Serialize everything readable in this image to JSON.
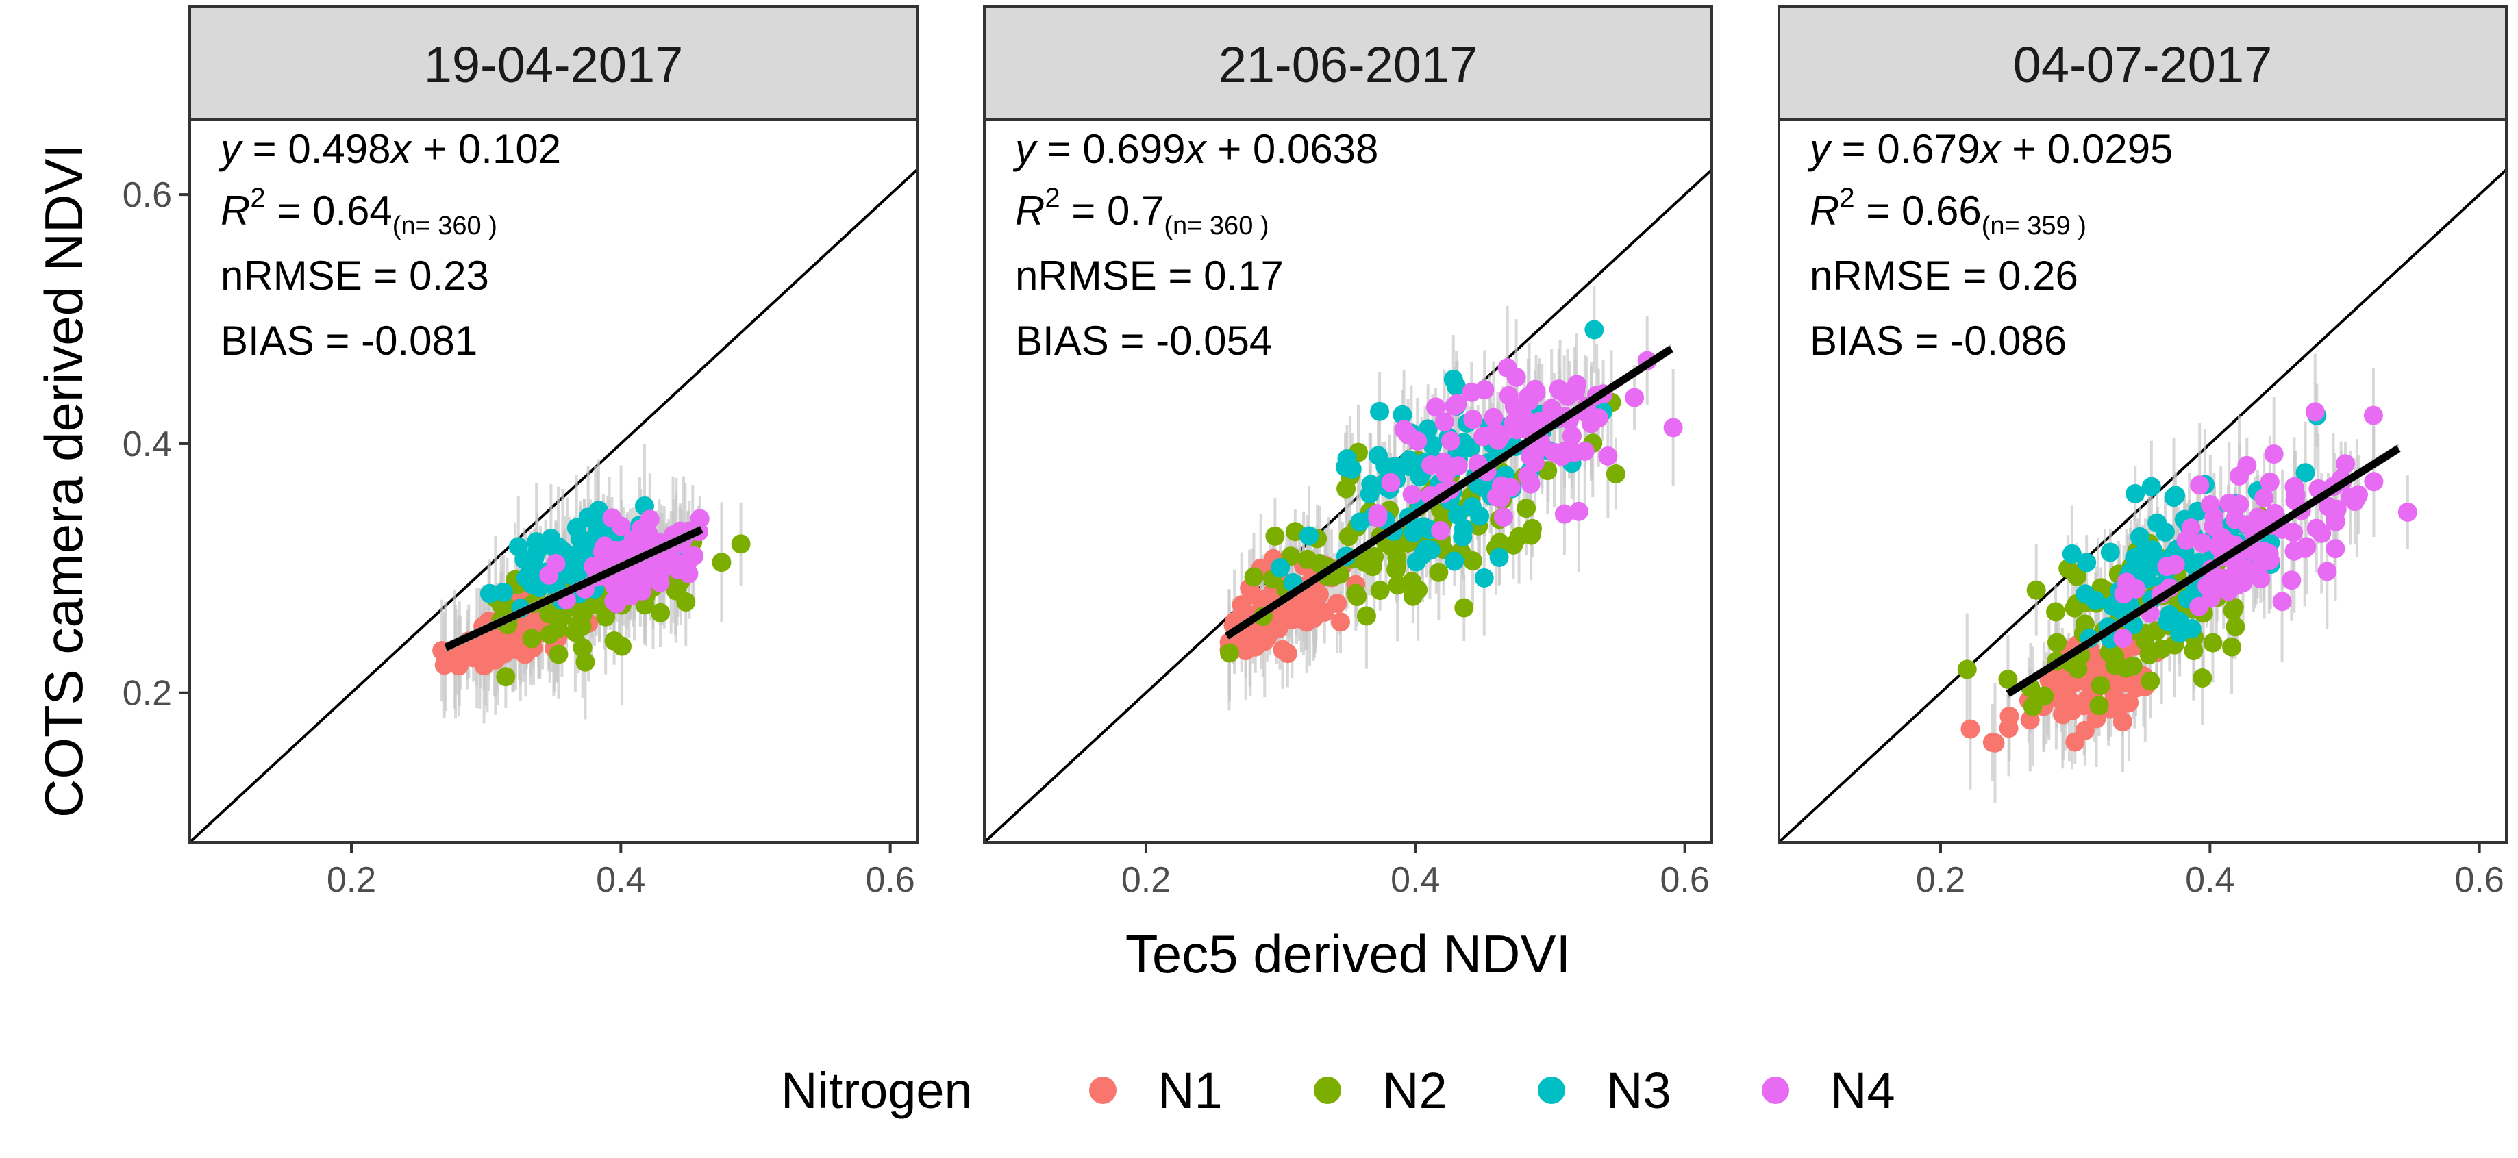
{
  "chart_data": {
    "type": "scatter",
    "xlabel": "Tec5 derived NDVI",
    "ylabel": "COTS camera derived NDVI",
    "xlim": [
      0.08,
      0.62
    ],
    "ylim": [
      0.08,
      0.66
    ],
    "x_ticks": [
      "0.2",
      "0.4",
      "0.6"
    ],
    "y_ticks": [
      "0.2",
      "0.4",
      "0.6"
    ],
    "grid": false,
    "reference_line": "1:1",
    "legend": {
      "title": "Nitrogen",
      "position": "bottom",
      "entries": [
        {
          "label": "N1",
          "color": "#F8766D"
        },
        {
          "label": "N2",
          "color": "#7CAE00"
        },
        {
          "label": "N3",
          "color": "#00BFC4"
        },
        {
          "label": "N4",
          "color": "#E76BF3"
        }
      ]
    },
    "panels": [
      {
        "title": "19-04-2017",
        "equation": "y = 0.498x + 0.102",
        "slope": 0.498,
        "intercept": 0.102,
        "r2_label": "R",
        "r2_sup": "2",
        "r2_value": " = 0.64",
        "r2_n": "(n= 360 )",
        "nrmse": "nRMSE = 0.23",
        "bias": "BIAS = -0.081",
        "fit_x_range": [
          0.27,
          0.46
        ],
        "clusters": [
          {
            "group": "N1",
            "cx": 0.315,
            "cy": 0.245,
            "sx": 0.022,
            "sy": 0.01
          },
          {
            "group": "N2",
            "cx": 0.385,
            "cy": 0.285,
            "sx": 0.045,
            "sy": 0.022
          },
          {
            "group": "N3",
            "cx": 0.375,
            "cy": 0.31,
            "sx": 0.025,
            "sy": 0.013
          },
          {
            "group": "N4",
            "cx": 0.415,
            "cy": 0.305,
            "sx": 0.022,
            "sy": 0.012
          }
        ]
      },
      {
        "title": "21-06-2017",
        "equation": "y = 0.699x + 0.0638",
        "slope": 0.699,
        "intercept": 0.0638,
        "r2_label": "R",
        "r2_sup": "2",
        "r2_value": " = 0.7",
        "r2_n": "(n= 360 )",
        "nrmse": "nRMSE = 0.17",
        "bias": "BIAS = -0.054",
        "fit_x_range": [
          0.26,
          0.59
        ],
        "clusters": [
          {
            "group": "N1",
            "cx": 0.305,
            "cy": 0.27,
            "sx": 0.025,
            "sy": 0.014
          },
          {
            "group": "N2",
            "cx": 0.39,
            "cy": 0.32,
            "sx": 0.05,
            "sy": 0.03
          },
          {
            "group": "N3",
            "cx": 0.42,
            "cy": 0.375,
            "sx": 0.045,
            "sy": 0.035
          },
          {
            "group": "N4",
            "cx": 0.475,
            "cy": 0.405,
            "sx": 0.05,
            "sy": 0.03
          }
        ]
      },
      {
        "title": "04-07-2017",
        "equation": "y = 0.679x + 0.0295",
        "slope": 0.679,
        "intercept": 0.0295,
        "r2_label": "R",
        "r2_sup": "2",
        "r2_value": " = 0.66",
        "r2_n": "(n= 359 )",
        "nrmse": "nRMSE = 0.26",
        "bias": "BIAS = -0.086",
        "fit_x_range": [
          0.25,
          0.54
        ],
        "clusters": [
          {
            "group": "N1",
            "cx": 0.305,
            "cy": 0.21,
            "sx": 0.03,
            "sy": 0.018
          },
          {
            "group": "N2",
            "cx": 0.345,
            "cy": 0.265,
            "sx": 0.045,
            "sy": 0.03
          },
          {
            "group": "N3",
            "cx": 0.38,
            "cy": 0.31,
            "sx": 0.04,
            "sy": 0.03
          },
          {
            "group": "N4",
            "cx": 0.44,
            "cy": 0.33,
            "sx": 0.045,
            "sy": 0.025
          }
        ]
      }
    ]
  }
}
